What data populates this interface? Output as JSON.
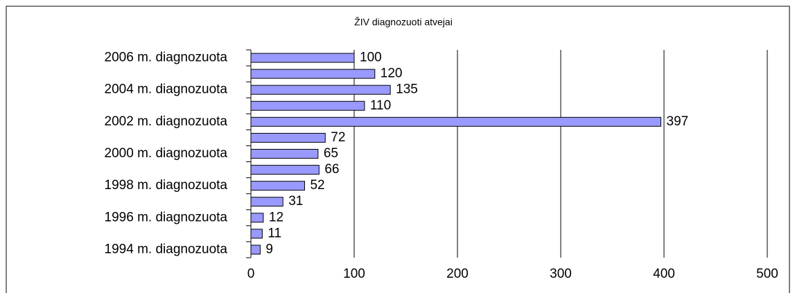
{
  "chart_data": {
    "type": "bar",
    "orientation": "horizontal",
    "title": "ŽIV diagnozuoti atvejai",
    "categories": [
      "2006 m. diagnozuota",
      null,
      "2004 m. diagnozuota",
      null,
      "2002 m. diagnozuota",
      null,
      "2000 m. diagnozuota",
      null,
      "1998 m. diagnozuota",
      null,
      "1996 m. diagnozuota",
      null,
      "1994 m. diagnozuota"
    ],
    "values": [
      100,
      120,
      135,
      110,
      397,
      72,
      65,
      66,
      52,
      31,
      12,
      11,
      9
    ],
    "color": "#9999ff",
    "xlim": [
      0,
      500
    ],
    "xticks": [
      0,
      100,
      200,
      300,
      400,
      500
    ],
    "grid": true
  }
}
